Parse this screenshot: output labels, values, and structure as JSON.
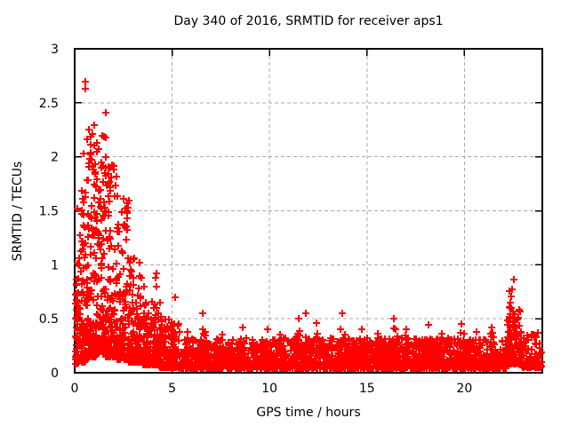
{
  "chart_data": {
    "type": "scatter",
    "title": "Day 340 of 2016, SRMTID for receiver aps1",
    "xlabel": "GPS time / hours",
    "ylabel": "SRMTID / TECUs",
    "xlim": [
      0,
      24
    ],
    "ylim": [
      0,
      3
    ],
    "xticks": [
      0,
      5,
      10,
      15,
      20
    ],
    "xtick_labels": [
      "0",
      "5",
      "10",
      "15",
      "20"
    ],
    "yticks": [
      0,
      0.5,
      1,
      1.5,
      2,
      2.5,
      3
    ],
    "ytick_labels": [
      "0",
      "0.5",
      "1",
      "1.5",
      "2",
      "2.5",
      "3"
    ],
    "grid": true,
    "grid_style": "dashed",
    "legend_position": "none",
    "marker": "plus",
    "marker_size_px": 8,
    "marker_color": "#ff0000",
    "grid_color": "#a8a8a8",
    "axis_color": "#000000",
    "background": "#ffffff",
    "series": [
      {
        "name": "SRMTID",
        "description": "Dense burst 0-5 h decaying from ~2.7 TECUs max to a noisy baseline of 0.05-0.3 with bumps to ~0.55, and a late spike to ~0.86 near 22.5 h",
        "scatter_model": {
          "segments": [
            {
              "x0": 0.03,
              "x1": 0.25,
              "n": 60,
              "y_base": 0.08,
              "y_spread": 1.05,
              "shape_power": 1.6
            },
            {
              "x0": 0.25,
              "x1": 0.6,
              "n": 80,
              "y_base": 0.1,
              "y_spread": 1.6,
              "shape_power": 2.2
            },
            {
              "x0": 0.6,
              "x1": 1.1,
              "n": 130,
              "y_base": 0.15,
              "y_spread": 2.1,
              "shape_power": 2.6
            },
            {
              "x0": 1.1,
              "x1": 1.6,
              "n": 130,
              "y_base": 0.2,
              "y_spread": 2.0,
              "shape_power": 2.6
            },
            {
              "x0": 1.6,
              "x1": 2.2,
              "n": 140,
              "y_base": 0.15,
              "y_spread": 1.8,
              "shape_power": 2.6
            },
            {
              "x0": 2.2,
              "x1": 2.8,
              "n": 120,
              "y_base": 0.12,
              "y_spread": 1.5,
              "shape_power": 2.5
            },
            {
              "x0": 2.8,
              "x1": 3.5,
              "n": 120,
              "y_base": 0.1,
              "y_spread": 1.0,
              "shape_power": 2.6
            },
            {
              "x0": 3.5,
              "x1": 4.3,
              "n": 120,
              "y_base": 0.07,
              "y_spread": 0.6,
              "shape_power": 2.4
            },
            {
              "x0": 4.3,
              "x1": 5.2,
              "n": 130,
              "y_base": 0.05,
              "y_spread": 0.45,
              "shape_power": 2.4
            },
            {
              "x0": 5.2,
              "x1": 22.2,
              "n": 1750,
              "y_base": 0.04,
              "y_spread": 0.28,
              "shape_power": 2.0
            },
            {
              "x0": 22.2,
              "x1": 22.9,
              "n": 100,
              "y_base": 0.08,
              "y_spread": 0.55,
              "shape_power": 1.8
            },
            {
              "x0": 22.9,
              "x1": 23.95,
              "n": 110,
              "y_base": 0.05,
              "y_spread": 0.33,
              "shape_power": 2.2
            }
          ],
          "bumps": [
            {
              "x": 2.9,
              "peak_y": 1.05,
              "width": 0.3,
              "n": 8
            },
            {
              "x": 3.3,
              "peak_y": 0.9,
              "width": 0.3,
              "n": 8
            },
            {
              "x": 3.6,
              "peak_y": 0.8,
              "width": 0.3,
              "n": 8
            },
            {
              "x": 4.2,
              "peak_y": 0.88,
              "width": 0.3,
              "n": 10
            },
            {
              "x": 4.45,
              "peak_y": 0.65,
              "width": 0.3,
              "n": 8
            },
            {
              "x": 5.2,
              "peak_y": 0.7,
              "width": 0.4,
              "n": 14
            },
            {
              "x": 5.8,
              "peak_y": 0.38,
              "width": 0.4,
              "n": 12
            },
            {
              "x": 6.6,
              "peak_y": 0.55,
              "width": 0.5,
              "n": 18
            },
            {
              "x": 7.6,
              "peak_y": 0.35,
              "width": 0.4,
              "n": 12
            },
            {
              "x": 8.6,
              "peak_y": 0.42,
              "width": 0.5,
              "n": 14
            },
            {
              "x": 9.9,
              "peak_y": 0.4,
              "width": 0.5,
              "n": 14
            },
            {
              "x": 10.5,
              "peak_y": 0.35,
              "width": 0.4,
              "n": 12
            },
            {
              "x": 11.5,
              "peak_y": 0.5,
              "width": 0.5,
              "n": 18
            },
            {
              "x": 11.9,
              "peak_y": 0.55,
              "width": 0.4,
              "n": 14
            },
            {
              "x": 12.4,
              "peak_y": 0.46,
              "width": 0.4,
              "n": 14
            },
            {
              "x": 13.7,
              "peak_y": 0.55,
              "width": 0.5,
              "n": 18
            },
            {
              "x": 14.7,
              "peak_y": 0.4,
              "width": 0.5,
              "n": 14
            },
            {
              "x": 15.6,
              "peak_y": 0.36,
              "width": 0.4,
              "n": 12
            },
            {
              "x": 16.4,
              "peak_y": 0.5,
              "width": 0.5,
              "n": 16
            },
            {
              "x": 17.0,
              "peak_y": 0.4,
              "width": 0.4,
              "n": 12
            },
            {
              "x": 18.2,
              "peak_y": 0.44,
              "width": 0.5,
              "n": 16
            },
            {
              "x": 18.8,
              "peak_y": 0.36,
              "width": 0.4,
              "n": 12
            },
            {
              "x": 19.9,
              "peak_y": 0.45,
              "width": 0.5,
              "n": 16
            },
            {
              "x": 20.6,
              "peak_y": 0.38,
              "width": 0.4,
              "n": 12
            },
            {
              "x": 21.4,
              "peak_y": 0.42,
              "width": 0.5,
              "n": 14
            }
          ],
          "outliers": [
            [
              0.53,
              2.7
            ],
            [
              0.57,
              2.63
            ],
            [
              1.6,
              2.41
            ],
            [
              0.99,
              2.29
            ],
            [
              0.91,
              2.21
            ],
            [
              1.52,
              2.19
            ],
            [
              0.99,
              2.1
            ],
            [
              1.22,
              2.07
            ],
            [
              0.46,
              2.03
            ],
            [
              0.85,
              1.97
            ],
            [
              1.05,
              1.93
            ],
            [
              1.35,
              1.9
            ],
            [
              2.0,
              1.88
            ],
            [
              2.15,
              1.82
            ],
            [
              0.12,
              1.52
            ],
            [
              0.35,
              1.47
            ],
            [
              0.44,
              1.58
            ],
            [
              4.2,
              0.92
            ],
            [
              22.55,
              0.86
            ],
            [
              22.33,
              0.76
            ],
            [
              22.45,
              0.77
            ],
            [
              22.4,
              0.71
            ],
            [
              22.38,
              0.65
            ],
            [
              22.42,
              0.6
            ],
            [
              22.35,
              0.54
            ],
            [
              22.5,
              0.5
            ]
          ]
        }
      }
    ]
  }
}
